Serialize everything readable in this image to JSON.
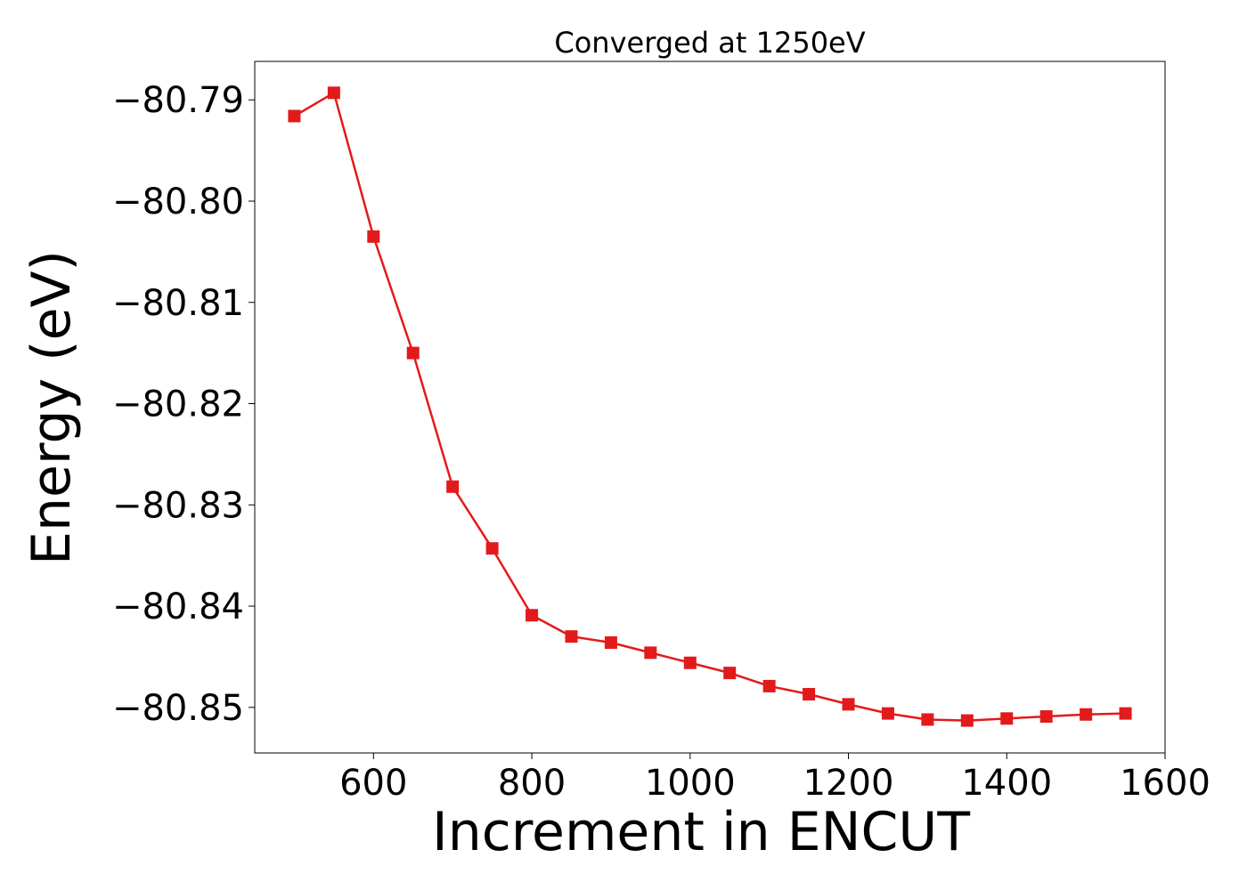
{
  "chart_data": {
    "type": "line",
    "title": "Converged at 1250eV",
    "xlabel": "Increment in ENCUT",
    "ylabel": "Energy (eV)",
    "xlim": [
      450,
      1600
    ],
    "ylim": [
      -80.8545,
      -80.7862
    ],
    "x_ticks": [
      600,
      800,
      1000,
      1200,
      1400,
      1600
    ],
    "x_tick_labels": [
      "600",
      "800",
      "1000",
      "1200",
      "1400",
      "1600"
    ],
    "y_ticks": [
      -80.79,
      -80.8,
      -80.81,
      -80.82,
      -80.83,
      -80.84,
      -80.85
    ],
    "y_tick_labels": [
      "−80.79",
      "−80.80",
      "−80.81",
      "−80.82",
      "−80.83",
      "−80.84",
      "−80.85"
    ],
    "grid": false,
    "series": [
      {
        "color": "#e31a1c",
        "marker": "square",
        "x": [
          500,
          550,
          600,
          650,
          700,
          750,
          800,
          850,
          900,
          950,
          1000,
          1050,
          1100,
          1150,
          1200,
          1250,
          1300,
          1350,
          1400,
          1450,
          1500,
          1550
        ],
        "y": [
          -80.7916,
          -80.7893,
          -80.8035,
          -80.815,
          -80.8282,
          -80.8343,
          -80.8409,
          -80.843,
          -80.8436,
          -80.8446,
          -80.8456,
          -80.8466,
          -80.8479,
          -80.8487,
          -80.8497,
          -80.8506,
          -80.8512,
          -80.8513,
          -80.8511,
          -80.8509,
          -80.8507,
          -80.8506
        ]
      }
    ]
  }
}
